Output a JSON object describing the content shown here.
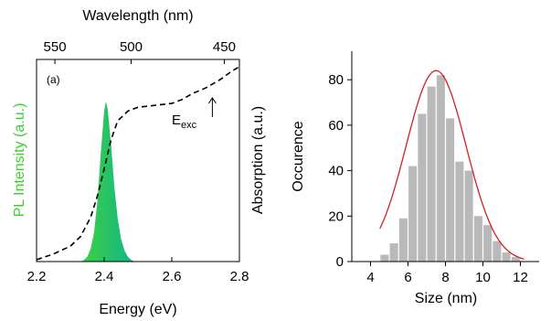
{
  "colors": {
    "axis": "#000000",
    "pl_fill_left": "#3fd13f",
    "pl_fill_right": "#11b48c",
    "pl_label": "#3ccf2e",
    "bar": "#b9b9b9",
    "fit": "#d42020"
  },
  "chart_data": [
    {
      "type": "area",
      "panel_label": "(a)",
      "xlabel": "Energy (eV)",
      "xlim": [
        2.2,
        2.8
      ],
      "x_ticks": [
        "2.2",
        "2.4",
        "2.6",
        "2.8"
      ],
      "x_tick_values": [
        2.2,
        2.4,
        2.6,
        2.8
      ],
      "top_xlabel": "Wavelength (nm)",
      "top_ticks": [
        "550",
        "500",
        "450"
      ],
      "top_tick_values": [
        550,
        500,
        450
      ],
      "ylabel_left": "PL Intensity (a.u.)",
      "ylabel_right": "Absorption (a.u.)",
      "annotation": {
        "text": "E",
        "subscript": "exc",
        "x": 2.72
      },
      "series": [
        {
          "name": "PL Intensity (a.u.)",
          "style": "filled",
          "x": [
            2.33,
            2.34,
            2.35,
            2.36,
            2.37,
            2.38,
            2.39,
            2.4,
            2.405,
            2.41,
            2.42,
            2.43,
            2.44,
            2.45,
            2.46,
            2.47,
            2.48,
            2.49
          ],
          "y": [
            0.0,
            0.01,
            0.03,
            0.08,
            0.18,
            0.38,
            0.68,
            0.94,
            1.0,
            0.96,
            0.74,
            0.47,
            0.27,
            0.14,
            0.07,
            0.03,
            0.01,
            0.0
          ]
        },
        {
          "name": "Absorption (a.u.)",
          "style": "dashed",
          "x": [
            2.2,
            2.25,
            2.3,
            2.33,
            2.36,
            2.38,
            2.4,
            2.42,
            2.44,
            2.47,
            2.5,
            2.55,
            2.6,
            2.63,
            2.66,
            2.7,
            2.74,
            2.78,
            2.8
          ],
          "y": [
            0.0,
            0.03,
            0.07,
            0.12,
            0.22,
            0.33,
            0.47,
            0.62,
            0.72,
            0.77,
            0.79,
            0.8,
            0.81,
            0.83,
            0.86,
            0.89,
            0.93,
            0.98,
            1.0
          ]
        }
      ]
    },
    {
      "type": "bar",
      "xlabel": "Size (nm)",
      "ylabel": "Occurence",
      "xlim": [
        3,
        13
      ],
      "ylim": [
        0,
        90
      ],
      "x_ticks": [
        "4",
        "6",
        "8",
        "10",
        "12"
      ],
      "x_tick_values": [
        4,
        6,
        8,
        10,
        12
      ],
      "y_ticks": [
        "0",
        "20",
        "40",
        "60",
        "80"
      ],
      "y_tick_values": [
        0,
        20,
        40,
        60,
        80
      ],
      "bin_width": 0.5,
      "bins": [
        4.75,
        5.25,
        5.75,
        6.25,
        6.75,
        7.25,
        7.75,
        8.25,
        8.75,
        9.25,
        9.75,
        10.25,
        10.75,
        11.25,
        11.75
      ],
      "values": [
        3,
        8,
        19,
        42,
        65,
        77,
        82,
        63,
        44,
        40,
        20,
        16,
        9,
        4,
        2
      ],
      "fit": {
        "type": "gaussian",
        "peak": 84,
        "center": 7.5,
        "sigma": 1.6,
        "x_range": [
          4.5,
          12.2
        ]
      }
    }
  ]
}
